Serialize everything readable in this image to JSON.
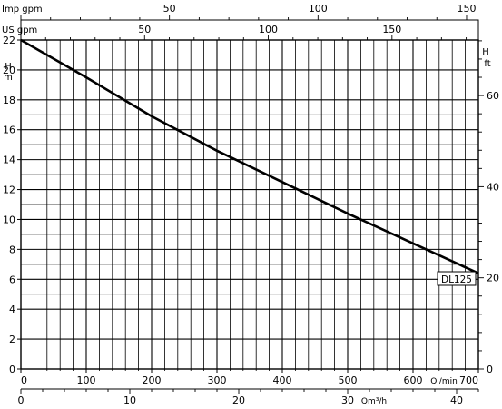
{
  "chart_data": {
    "type": "line",
    "title": "",
    "xlabel": "Ql/min",
    "ylabel": "H m",
    "ylabel_right": "H ft",
    "xlim": [
      0,
      700
    ],
    "ylim": [
      0,
      22
    ],
    "grid": true,
    "x_ticks": [
      0,
      100,
      200,
      300,
      400,
      500,
      600,
      700
    ],
    "y_ticks": [
      0,
      2,
      4,
      6,
      8,
      10,
      12,
      14,
      16,
      18,
      20,
      22
    ],
    "right_axis": {
      "label": "H ft",
      "ticks": [
        0,
        20,
        40,
        60
      ]
    },
    "top_axes": [
      {
        "label": "Imp gpm",
        "ticks": [
          50,
          100,
          150
        ]
      },
      {
        "label": "US gpm",
        "ticks": [
          50,
          100,
          150
        ]
      }
    ],
    "bottom_axis2": {
      "label": "Qm³/h",
      "ticks": [
        0,
        10,
        20,
        30,
        40
      ]
    },
    "series": [
      {
        "name": "DL125",
        "x": [
          0,
          100,
          200,
          300,
          400,
          500,
          600,
          700
        ],
        "y": [
          22.0,
          19.5,
          16.9,
          14.6,
          12.5,
          10.4,
          8.4,
          6.4
        ]
      }
    ]
  }
}
